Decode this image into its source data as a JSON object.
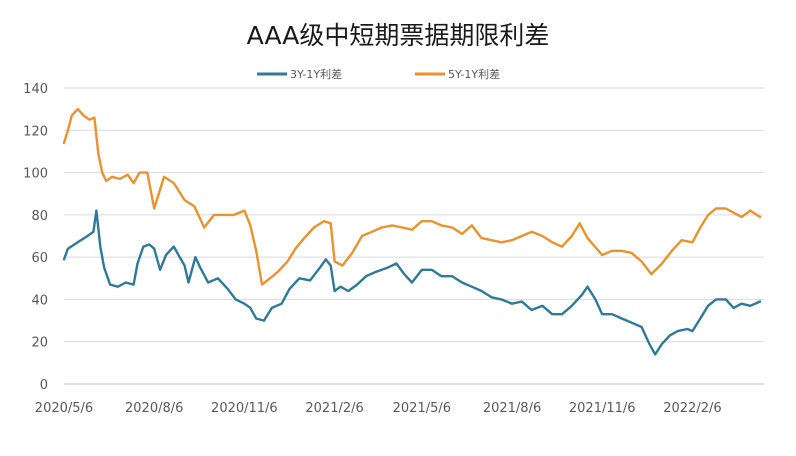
{
  "chart_data": {
    "type": "line",
    "title": "AAA级中短期票据期限利差",
    "xlabel": "",
    "ylabel": "",
    "ylim": [
      0,
      140
    ],
    "yticks": [
      0,
      20,
      40,
      60,
      80,
      100,
      120,
      140
    ],
    "xlim": [
      "2020-05-06",
      "2022-04-20"
    ],
    "xtick_labels": [
      "2020/5/6",
      "2020/8/6",
      "2020/11/6",
      "2021/2/6",
      "2021/5/6",
      "2021/8/6",
      "2021/11/6",
      "2022/2/6"
    ],
    "xtick_dates": [
      "2020-05-06",
      "2020-08-06",
      "2020-11-06",
      "2021-02-06",
      "2021-05-06",
      "2021-08-06",
      "2021-11-06",
      "2022-02-06"
    ],
    "grid": "horizontal",
    "legend": "top-center",
    "series": [
      {
        "name": "3Y-1Y利差",
        "color": "#2e7a9a",
        "points": [
          [
            "2020-05-06",
            59
          ],
          [
            "2020-05-10",
            64
          ],
          [
            "2020-05-20",
            67
          ],
          [
            "2020-05-30",
            70
          ],
          [
            "2020-06-05",
            72
          ],
          [
            "2020-06-08",
            82
          ],
          [
            "2020-06-12",
            65
          ],
          [
            "2020-06-16",
            55
          ],
          [
            "2020-06-22",
            47
          ],
          [
            "2020-06-30",
            46
          ],
          [
            "2020-07-08",
            48
          ],
          [
            "2020-07-16",
            47
          ],
          [
            "2020-07-20",
            57
          ],
          [
            "2020-07-26",
            65
          ],
          [
            "2020-08-01",
            66
          ],
          [
            "2020-08-06",
            64
          ],
          [
            "2020-08-12",
            54
          ],
          [
            "2020-08-18",
            61
          ],
          [
            "2020-08-26",
            65
          ],
          [
            "2020-09-01",
            60
          ],
          [
            "2020-09-06",
            56
          ],
          [
            "2020-09-10",
            48
          ],
          [
            "2020-09-17",
            60
          ],
          [
            "2020-09-22",
            55
          ],
          [
            "2020-09-30",
            48
          ],
          [
            "2020-10-10",
            50
          ],
          [
            "2020-10-20",
            45
          ],
          [
            "2020-10-28",
            40
          ],
          [
            "2020-11-06",
            38
          ],
          [
            "2020-11-12",
            36
          ],
          [
            "2020-11-18",
            31
          ],
          [
            "2020-11-26",
            30
          ],
          [
            "2020-12-04",
            36
          ],
          [
            "2020-12-14",
            38
          ],
          [
            "2020-12-22",
            45
          ],
          [
            "2021-01-01",
            50
          ],
          [
            "2021-01-12",
            49
          ],
          [
            "2021-01-22",
            55
          ],
          [
            "2021-01-28",
            59
          ],
          [
            "2021-02-02",
            56
          ],
          [
            "2021-02-06",
            44
          ],
          [
            "2021-02-12",
            46
          ],
          [
            "2021-02-20",
            44
          ],
          [
            "2021-03-01",
            47
          ],
          [
            "2021-03-10",
            51
          ],
          [
            "2021-03-20",
            53
          ],
          [
            "2021-04-01",
            55
          ],
          [
            "2021-04-10",
            57
          ],
          [
            "2021-04-18",
            52
          ],
          [
            "2021-04-26",
            48
          ],
          [
            "2021-05-06",
            54
          ],
          [
            "2021-05-16",
            54
          ],
          [
            "2021-05-26",
            51
          ],
          [
            "2021-06-06",
            51
          ],
          [
            "2021-06-16",
            48
          ],
          [
            "2021-06-26",
            46
          ],
          [
            "2021-07-06",
            44
          ],
          [
            "2021-07-16",
            41
          ],
          [
            "2021-07-26",
            40
          ],
          [
            "2021-08-06",
            38
          ],
          [
            "2021-08-16",
            39
          ],
          [
            "2021-08-26",
            35
          ],
          [
            "2021-09-06",
            37
          ],
          [
            "2021-09-16",
            33
          ],
          [
            "2021-09-26",
            33
          ],
          [
            "2021-10-06",
            37
          ],
          [
            "2021-10-16",
            42
          ],
          [
            "2021-10-22",
            46
          ],
          [
            "2021-10-30",
            40
          ],
          [
            "2021-11-06",
            33
          ],
          [
            "2021-11-16",
            33
          ],
          [
            "2021-11-26",
            31
          ],
          [
            "2021-12-06",
            29
          ],
          [
            "2021-12-16",
            27
          ],
          [
            "2021-12-24",
            19
          ],
          [
            "2021-12-30",
            14
          ],
          [
            "2022-01-06",
            19
          ],
          [
            "2022-01-14",
            23
          ],
          [
            "2022-01-22",
            25
          ],
          [
            "2022-02-01",
            26
          ],
          [
            "2022-02-06",
            25
          ],
          [
            "2022-02-14",
            31
          ],
          [
            "2022-02-22",
            37
          ],
          [
            "2022-03-02",
            40
          ],
          [
            "2022-03-12",
            40
          ],
          [
            "2022-03-20",
            36
          ],
          [
            "2022-03-28",
            38
          ],
          [
            "2022-04-06",
            37
          ],
          [
            "2022-04-16",
            39
          ]
        ]
      },
      {
        "name": "5Y-1Y利差",
        "color": "#ec922d",
        "points": [
          [
            "2020-05-06",
            114
          ],
          [
            "2020-05-10",
            120
          ],
          [
            "2020-05-14",
            127
          ],
          [
            "2020-05-20",
            130
          ],
          [
            "2020-05-26",
            127
          ],
          [
            "2020-06-01",
            125
          ],
          [
            "2020-06-06",
            126
          ],
          [
            "2020-06-10",
            109
          ],
          [
            "2020-06-14",
            100
          ],
          [
            "2020-06-18",
            96
          ],
          [
            "2020-06-24",
            98
          ],
          [
            "2020-07-02",
            97
          ],
          [
            "2020-07-10",
            99
          ],
          [
            "2020-07-16",
            95
          ],
          [
            "2020-07-22",
            100
          ],
          [
            "2020-07-30",
            100
          ],
          [
            "2020-08-06",
            83
          ],
          [
            "2020-08-12",
            92
          ],
          [
            "2020-08-16",
            98
          ],
          [
            "2020-08-26",
            95
          ],
          [
            "2020-09-06",
            87
          ],
          [
            "2020-09-16",
            84
          ],
          [
            "2020-09-26",
            74
          ],
          [
            "2020-10-06",
            80
          ],
          [
            "2020-10-16",
            80
          ],
          [
            "2020-10-26",
            80
          ],
          [
            "2020-11-06",
            82
          ],
          [
            "2020-11-12",
            75
          ],
          [
            "2020-11-18",
            63
          ],
          [
            "2020-11-24",
            47
          ],
          [
            "2020-12-02",
            50
          ],
          [
            "2020-12-10",
            53
          ],
          [
            "2020-12-20",
            58
          ],
          [
            "2020-12-28",
            64
          ],
          [
            "2021-01-06",
            69
          ],
          [
            "2021-01-16",
            74
          ],
          [
            "2021-01-26",
            77
          ],
          [
            "2021-02-02",
            76
          ],
          [
            "2021-02-06",
            58
          ],
          [
            "2021-02-14",
            56
          ],
          [
            "2021-02-24",
            62
          ],
          [
            "2021-03-06",
            70
          ],
          [
            "2021-03-16",
            72
          ],
          [
            "2021-03-26",
            74
          ],
          [
            "2021-04-06",
            75
          ],
          [
            "2021-04-16",
            74
          ],
          [
            "2021-04-26",
            73
          ],
          [
            "2021-05-06",
            77
          ],
          [
            "2021-05-16",
            77
          ],
          [
            "2021-05-26",
            75
          ],
          [
            "2021-06-06",
            74
          ],
          [
            "2021-06-16",
            71
          ],
          [
            "2021-06-26",
            75
          ],
          [
            "2021-07-06",
            69
          ],
          [
            "2021-07-16",
            68
          ],
          [
            "2021-07-26",
            67
          ],
          [
            "2021-08-06",
            68
          ],
          [
            "2021-08-16",
            70
          ],
          [
            "2021-08-26",
            72
          ],
          [
            "2021-09-06",
            70
          ],
          [
            "2021-09-16",
            67
          ],
          [
            "2021-09-26",
            65
          ],
          [
            "2021-10-06",
            70
          ],
          [
            "2021-10-14",
            76
          ],
          [
            "2021-10-22",
            69
          ],
          [
            "2021-11-06",
            61
          ],
          [
            "2021-11-16",
            63
          ],
          [
            "2021-11-26",
            63
          ],
          [
            "2021-12-06",
            62
          ],
          [
            "2021-12-16",
            58
          ],
          [
            "2021-12-26",
            52
          ],
          [
            "2022-01-06",
            57
          ],
          [
            "2022-01-16",
            63
          ],
          [
            "2022-01-26",
            68
          ],
          [
            "2022-02-06",
            67
          ],
          [
            "2022-02-14",
            74
          ],
          [
            "2022-02-22",
            80
          ],
          [
            "2022-03-02",
            83
          ],
          [
            "2022-03-12",
            83
          ],
          [
            "2022-03-20",
            81
          ],
          [
            "2022-03-28",
            79
          ],
          [
            "2022-04-06",
            82
          ],
          [
            "2022-04-16",
            79
          ]
        ]
      }
    ]
  }
}
